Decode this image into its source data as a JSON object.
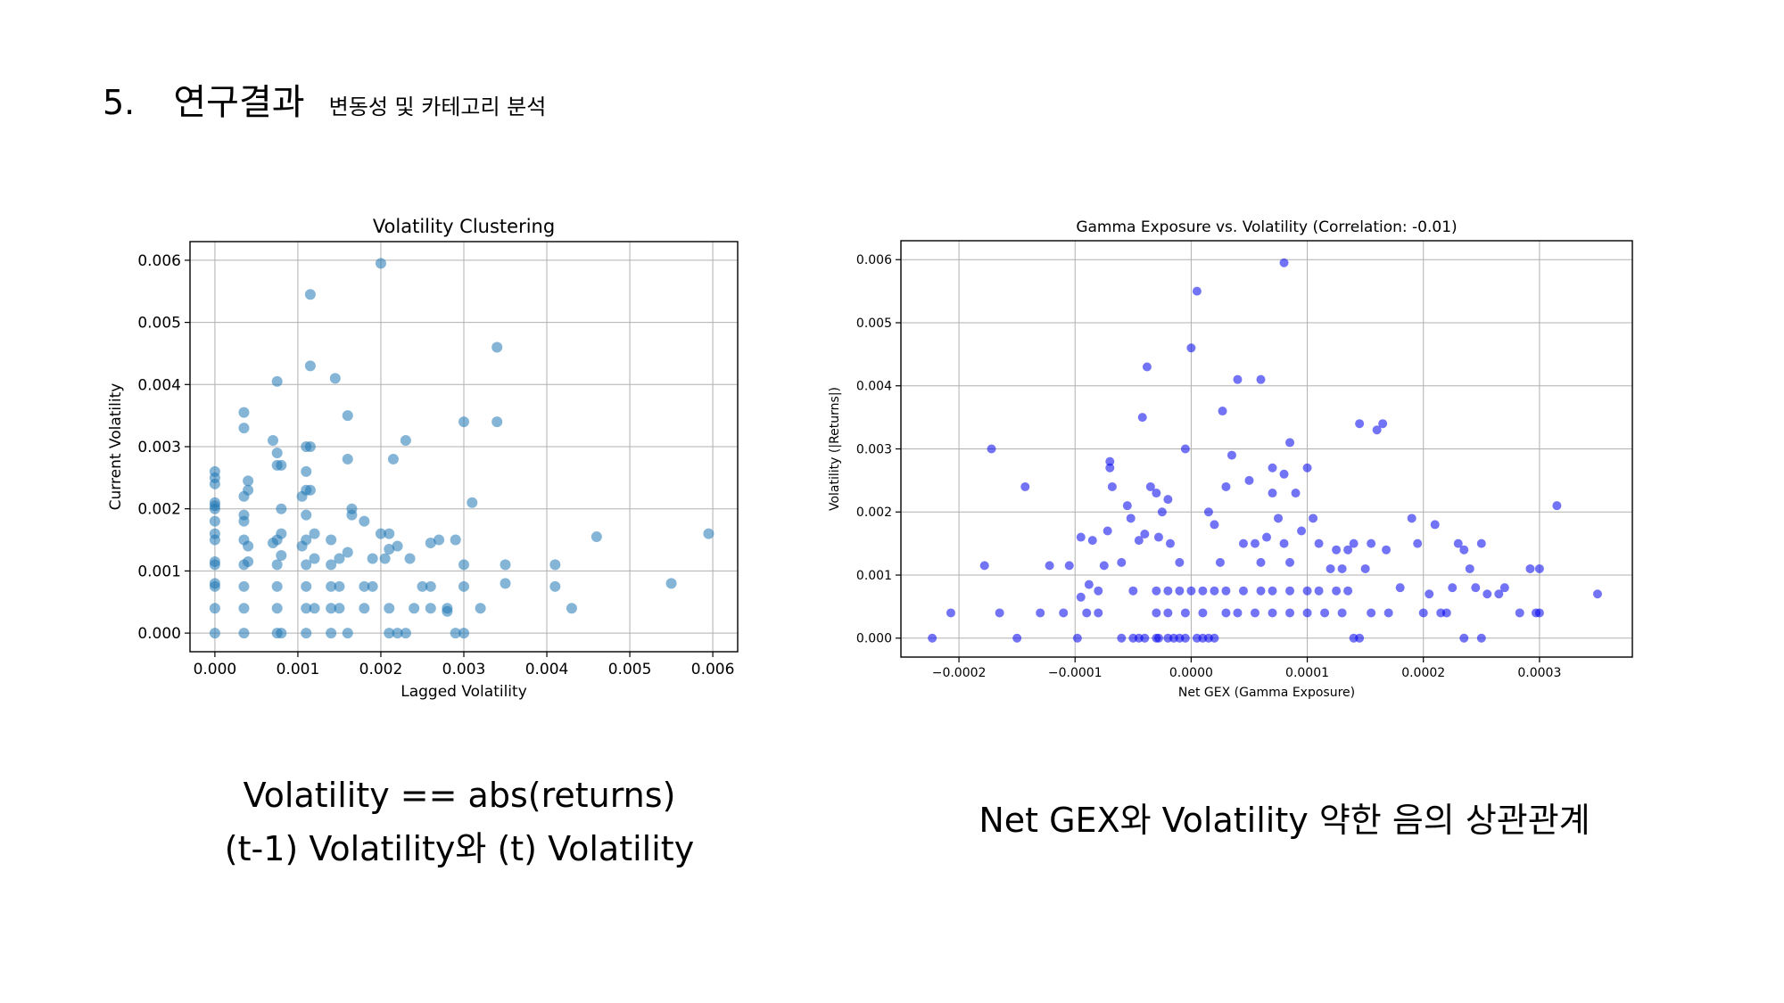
{
  "header": {
    "number": "5.",
    "title": "연구결과",
    "subtitle": "변동성 및 카테고리 분석"
  },
  "captions": {
    "left_line1": "Volatility == abs(returns)",
    "left_line2": "(t-1) Volatility와 (t) Volatility",
    "right": "Net GEX와 Volatility 약한 음의 상관관계"
  },
  "chart_data": [
    {
      "type": "scatter",
      "title": "Volatility Clustering",
      "xlabel": "Lagged Volatility",
      "ylabel": "Current Volatility",
      "xlim": [
        -0.0003,
        0.0063
      ],
      "ylim": [
        -0.0003,
        0.0063
      ],
      "xticks": [
        0,
        0.001,
        0.002,
        0.003,
        0.004,
        0.005,
        0.006
      ],
      "xtick_labels": [
        "0.000",
        "0.001",
        "0.002",
        "0.003",
        "0.004",
        "0.005",
        "0.006"
      ],
      "yticks": [
        0,
        0.001,
        0.002,
        0.003,
        0.004,
        0.005,
        0.006
      ],
      "ytick_labels": [
        "0.000",
        "0.001",
        "0.002",
        "0.003",
        "0.004",
        "0.005",
        "0.006"
      ],
      "grid": true,
      "marker_color": "#1f77b4",
      "marker_opacity": 0.55,
      "points": [
        [
          0,
          0
        ],
        [
          0,
          0.0004
        ],
        [
          0,
          0.00075
        ],
        [
          0,
          0.0008
        ],
        [
          0,
          0.0011
        ],
        [
          0,
          0.00115
        ],
        [
          0,
          0.0015
        ],
        [
          0,
          0.0016
        ],
        [
          0,
          0.0018
        ],
        [
          0,
          0.002
        ],
        [
          0,
          0.00205
        ],
        [
          0,
          0.0021
        ],
        [
          0,
          0.0024
        ],
        [
          0,
          0.0025
        ],
        [
          0,
          0.0026
        ],
        [
          0.00035,
          0
        ],
        [
          0.00035,
          0.0004
        ],
        [
          0.00035,
          0.00075
        ],
        [
          0.00035,
          0.0011
        ],
        [
          0.00035,
          0.0015
        ],
        [
          0.00035,
          0.0018
        ],
        [
          0.00035,
          0.0019
        ],
        [
          0.00035,
          0.0022
        ],
        [
          0.00035,
          0.0033
        ],
        [
          0.00035,
          0.00355
        ],
        [
          0.0004,
          0.0023
        ],
        [
          0.0004,
          0.00245
        ],
        [
          0.0004,
          0.00115
        ],
        [
          0.0004,
          0.0014
        ],
        [
          0.00075,
          0
        ],
        [
          0.00075,
          0.0004
        ],
        [
          0.00075,
          0.00075
        ],
        [
          0.00075,
          0.0011
        ],
        [
          0.00075,
          0.0015
        ],
        [
          0.00075,
          0.0029
        ],
        [
          0.00075,
          0.0027
        ],
        [
          0.00075,
          0.00405
        ],
        [
          0.0007,
          0.0031
        ],
        [
          0.0007,
          0.00145
        ],
        [
          0.0008,
          0.002
        ],
        [
          0.0008,
          0.0016
        ],
        [
          0.0008,
          0.00125
        ],
        [
          0.0008,
          0.0027
        ],
        [
          0.0008,
          0
        ],
        [
          0.0011,
          0
        ],
        [
          0.0011,
          0.0004
        ],
        [
          0.0011,
          0.00075
        ],
        [
          0.0011,
          0.0011
        ],
        [
          0.0011,
          0.0015
        ],
        [
          0.0011,
          0.0019
        ],
        [
          0.0011,
          0.0023
        ],
        [
          0.0011,
          0.0026
        ],
        [
          0.0011,
          0.003
        ],
        [
          0.00115,
          0.003
        ],
        [
          0.00115,
          0.0023
        ],
        [
          0.00115,
          0.00545
        ],
        [
          0.00115,
          0.0043
        ],
        [
          0.0012,
          0.0016
        ],
        [
          0.0012,
          0.0012
        ],
        [
          0.0012,
          0.0004
        ],
        [
          0.00105,
          0.0022
        ],
        [
          0.00105,
          0.0014
        ],
        [
          0.0014,
          0
        ],
        [
          0.0014,
          0.0004
        ],
        [
          0.0014,
          0.00075
        ],
        [
          0.0014,
          0.0011
        ],
        [
          0.0014,
          0.0015
        ],
        [
          0.00145,
          0.0041
        ],
        [
          0.0015,
          0.0012
        ],
        [
          0.0015,
          0.00075
        ],
        [
          0.0015,
          0.0004
        ],
        [
          0.0016,
          0
        ],
        [
          0.0016,
          0.0035
        ],
        [
          0.0016,
          0.0028
        ],
        [
          0.00165,
          0.002
        ],
        [
          0.00165,
          0.0019
        ],
        [
          0.0016,
          0.0013
        ],
        [
          0.0018,
          0.0004
        ],
        [
          0.0018,
          0.00075
        ],
        [
          0.0019,
          0.00075
        ],
        [
          0.0019,
          0.0012
        ],
        [
          0.0018,
          0.0018
        ],
        [
          0.002,
          0.00595
        ],
        [
          0.002,
          0.0016
        ],
        [
          0.0021,
          0.0016
        ],
        [
          0.00205,
          0.0012
        ],
        [
          0.0021,
          0
        ],
        [
          0.0021,
          0.0004
        ],
        [
          0.0021,
          0.00135
        ],
        [
          0.00215,
          0.0028
        ],
        [
          0.0022,
          0.0014
        ],
        [
          0.0022,
          0
        ],
        [
          0.0023,
          0.0031
        ],
        [
          0.0023,
          0
        ],
        [
          0.00235,
          0.0012
        ],
        [
          0.0024,
          0.0004
        ],
        [
          0.0025,
          0.00075
        ],
        [
          0.0026,
          0.0004
        ],
        [
          0.0026,
          0.00145
        ],
        [
          0.0026,
          0.00075
        ],
        [
          0.0027,
          0.0015
        ],
        [
          0.0028,
          0.0004
        ],
        [
          0.0028,
          0.00035
        ],
        [
          0.0029,
          0
        ],
        [
          0.0029,
          0.0015
        ],
        [
          0.003,
          0
        ],
        [
          0.003,
          0.00075
        ],
        [
          0.003,
          0.0011
        ],
        [
          0.003,
          0.0034
        ],
        [
          0.0031,
          0.0021
        ],
        [
          0.0032,
          0.0004
        ],
        [
          0.0034,
          0.0046
        ],
        [
          0.0034,
          0.0034
        ],
        [
          0.0035,
          0.0008
        ],
        [
          0.0035,
          0.0011
        ],
        [
          0.0041,
          0.0011
        ],
        [
          0.0041,
          0.00075
        ],
        [
          0.0043,
          0.0004
        ],
        [
          0.0046,
          0.00155
        ],
        [
          0.0055,
          0.0008
        ],
        [
          0.00595,
          0.0016
        ]
      ]
    },
    {
      "type": "scatter",
      "title": "Gamma Exposure vs. Volatility (Correlation: -0.01)",
      "xlabel": "Net GEX (Gamma Exposure)",
      "ylabel": "Volatility (|Returns|)",
      "xlim": [
        -0.00025,
        0.00038
      ],
      "ylim": [
        -0.0003,
        0.0063
      ],
      "xticks": [
        -0.0002,
        -0.0001,
        0,
        0.0001,
        0.0002,
        0.0003
      ],
      "xtick_labels": [
        "−0.0002",
        "−0.0001",
        "0.0000",
        "0.0001",
        "0.0002",
        "0.0003"
      ],
      "yticks": [
        0,
        0.001,
        0.002,
        0.003,
        0.004,
        0.005,
        0.006
      ],
      "ytick_labels": [
        "0.000",
        "0.001",
        "0.002",
        "0.003",
        "0.004",
        "0.005",
        "0.006"
      ],
      "grid": true,
      "marker_color": "#0000ee",
      "marker_opacity": 0.55,
      "points": [
        [
          -0.000223,
          0
        ],
        [
          -0.000207,
          0.0004
        ],
        [
          -0.000172,
          0.003
        ],
        [
          -0.000178,
          0.00115
        ],
        [
          -0.000165,
          0.0004
        ],
        [
          -0.00015,
          0
        ],
        [
          -0.000143,
          0.0024
        ],
        [
          -0.00013,
          0.0004
        ],
        [
          -0.000122,
          0.00115
        ],
        [
          -0.00011,
          0.0004
        ],
        [
          -0.000105,
          0.00115
        ],
        [
          -9.8e-05,
          0
        ],
        [
          -9.5e-05,
          0.0016
        ],
        [
          -9.5e-05,
          0.00065
        ],
        [
          -9e-05,
          0.0004
        ],
        [
          -8.8e-05,
          0.00085
        ],
        [
          -8.5e-05,
          0.00155
        ],
        [
          -8e-05,
          0.0004
        ],
        [
          -7.5e-05,
          0.00115
        ],
        [
          -7.2e-05,
          0.0017
        ],
        [
          -8e-05,
          0.00075
        ],
        [
          -7e-05,
          0.0028
        ],
        [
          -7e-05,
          0.0027
        ],
        [
          -6.8e-05,
          0.0024
        ],
        [
          -6e-05,
          0.0012
        ],
        [
          -5.5e-05,
          0.0021
        ],
        [
          -5.2e-05,
          0.0019
        ],
        [
          -5e-05,
          0.00075
        ],
        [
          -4.5e-05,
          0.00155
        ],
        [
          -4.2e-05,
          0.0035
        ],
        [
          -4e-05,
          0.00165
        ],
        [
          -3.8e-05,
          0.0043
        ],
        [
          -3.5e-05,
          0.0024
        ],
        [
          -3e-05,
          0.0023
        ],
        [
          -2.8e-05,
          0.0016
        ],
        [
          -2.5e-05,
          0.002
        ],
        [
          -2e-05,
          0.0022
        ],
        [
          -1.8e-05,
          0.0015
        ],
        [
          -1e-05,
          0.0012
        ],
        [
          -5e-06,
          0.003
        ],
        [
          0,
          0.0046
        ],
        [
          5e-06,
          0.0055
        ],
        [
          -6e-05,
          0
        ],
        [
          -5e-05,
          0
        ],
        [
          -4.5e-05,
          0
        ],
        [
          -4e-05,
          0
        ],
        [
          -3e-05,
          0
        ],
        [
          -2.8e-05,
          0
        ],
        [
          -2e-05,
          0
        ],
        [
          -1.5e-05,
          0
        ],
        [
          -1e-05,
          0
        ],
        [
          -5e-06,
          0
        ],
        [
          5e-06,
          0
        ],
        [
          1e-05,
          0
        ],
        [
          1.5e-05,
          0
        ],
        [
          2e-05,
          0
        ],
        [
          -3e-05,
          0.00075
        ],
        [
          -2e-05,
          0.00075
        ],
        [
          -1e-05,
          0.00075
        ],
        [
          0,
          0.00075
        ],
        [
          1e-05,
          0.00075
        ],
        [
          2e-05,
          0.00075
        ],
        [
          3e-05,
          0.00075
        ],
        [
          4.5e-05,
          0.00075
        ],
        [
          6e-05,
          0.00075
        ],
        [
          7e-05,
          0.00075
        ],
        [
          8.5e-05,
          0.00075
        ],
        [
          0.0001,
          0.00075
        ],
        [
          0.00011,
          0.00075
        ],
        [
          0.000125,
          0.00075
        ],
        [
          0.000135,
          0.00075
        ],
        [
          -3e-05,
          0.0004
        ],
        [
          -2e-05,
          0.0004
        ],
        [
          -5e-06,
          0.0004
        ],
        [
          1e-05,
          0.0004
        ],
        [
          3e-05,
          0.0004
        ],
        [
          4e-05,
          0.0004
        ],
        [
          5.5e-05,
          0.0004
        ],
        [
          7e-05,
          0.0004
        ],
        [
          8.5e-05,
          0.0004
        ],
        [
          0.0001,
          0.0004
        ],
        [
          0.000115,
          0.0004
        ],
        [
          0.00013,
          0.0004
        ],
        [
          1.5e-05,
          0.002
        ],
        [
          2e-05,
          0.0018
        ],
        [
          2.5e-05,
          0.0012
        ],
        [
          3e-05,
          0.0024
        ],
        [
          3.5e-05,
          0.0029
        ],
        [
          4e-05,
          0.0041
        ],
        [
          4.5e-05,
          0.0015
        ],
        [
          5e-05,
          0.0025
        ],
        [
          5.5e-05,
          0.0015
        ],
        [
          6e-05,
          0.0012
        ],
        [
          6.5e-05,
          0.0016
        ],
        [
          7e-05,
          0.0027
        ],
        [
          7e-05,
          0.0023
        ],
        [
          7.5e-05,
          0.0019
        ],
        [
          8e-05,
          0.0026
        ],
        [
          8.5e-05,
          0.0031
        ],
        [
          8e-05,
          0.0015
        ],
        [
          8.5e-05,
          0.0012
        ],
        [
          9e-05,
          0.0023
        ],
        [
          9.5e-05,
          0.0017
        ],
        [
          0.0001,
          0.0027
        ],
        [
          8e-05,
          0.00595
        ],
        [
          2.7e-05,
          0.0036
        ],
        [
          6e-05,
          0.0041
        ],
        [
          0.000105,
          0.0019
        ],
        [
          0.00011,
          0.0015
        ],
        [
          0.00012,
          0.0011
        ],
        [
          0.000125,
          0.0014
        ],
        [
          0.00013,
          0.0011
        ],
        [
          0.000135,
          0.0014
        ],
        [
          0.00014,
          0.0015
        ],
        [
          0.000145,
          0.0034
        ],
        [
          0.00015,
          0.0011
        ],
        [
          0.000155,
          0.0015
        ],
        [
          0.00016,
          0.0033
        ],
        [
          0.000165,
          0.0034
        ],
        [
          0.000168,
          0.0014
        ],
        [
          0.00017,
          0.0004
        ],
        [
          0.000155,
          0.0004
        ],
        [
          0.00014,
          0
        ],
        [
          0.000145,
          0
        ],
        [
          0.00018,
          0.0008
        ],
        [
          0.00019,
          0.0019
        ],
        [
          0.000195,
          0.0015
        ],
        [
          0.0002,
          0.0004
        ],
        [
          0.000205,
          0.0007
        ],
        [
          0.00021,
          0.0018
        ],
        [
          0.000215,
          0.0004
        ],
        [
          0.00022,
          0.0004
        ],
        [
          0.000225,
          0.0008
        ],
        [
          0.00023,
          0.0015
        ],
        [
          0.000235,
          0.0014
        ],
        [
          0.000235,
          0
        ],
        [
          0.00024,
          0.0011
        ],
        [
          0.000245,
          0.0008
        ],
        [
          0.00025,
          0.0015
        ],
        [
          0.00025,
          0
        ],
        [
          0.000255,
          0.0007
        ],
        [
          0.000265,
          0.0007
        ],
        [
          0.00027,
          0.0008
        ],
        [
          0.000283,
          0.0004
        ],
        [
          0.000292,
          0.0011
        ],
        [
          0.000297,
          0.0004
        ],
        [
          0.0003,
          0.0011
        ],
        [
          0.0003,
          0.0004
        ],
        [
          0.000315,
          0.0021
        ],
        [
          0.00035,
          0.0007
        ]
      ]
    }
  ]
}
